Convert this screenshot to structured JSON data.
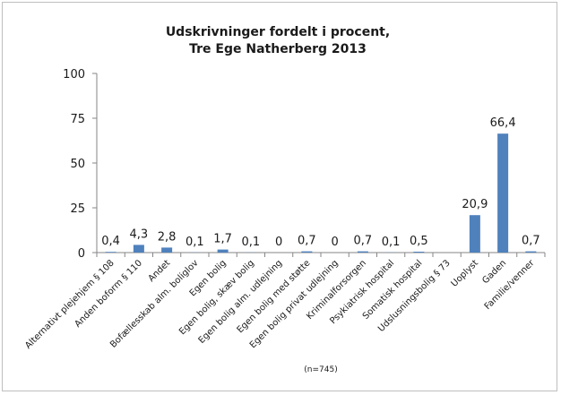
{
  "chart_data": {
    "type": "bar",
    "title_lines": [
      "Udskrivninger fordelt i procent,",
      "Tre Ege Natherberg 2013"
    ],
    "categories": [
      "Alternativt plejehjem § 108",
      "Anden boform § 110",
      "Andet",
      "Bofællesskab alm. boliglov",
      "Egen bolig",
      "Egen bolig, skæv bolig",
      "Egen bolig alm. udlejning",
      "Egen bolig med støtte",
      "Egen bolig privat udlejning",
      "Kriminalforsorgen",
      "Psykiatrisk hospital",
      "Somatisk hospital",
      "Udslusningsbolig § 73",
      "Uoplyst",
      "Gaden",
      "Familie/venner"
    ],
    "values": [
      0.4,
      4.3,
      2.8,
      0.1,
      1.7,
      0.1,
      0,
      0.7,
      0,
      0.7,
      0.1,
      0.5,
      null,
      20.9,
      66.4,
      0.7
    ],
    "data_labels": [
      "0,4",
      "4,3",
      "2,8",
      "0,1",
      "1,7",
      "0,1",
      "0",
      "0,7",
      "0",
      "0,7",
      "0,1",
      "0,5",
      "",
      "20,9",
      "66,4",
      "0,7"
    ],
    "yticks": [
      "0",
      "25",
      "50",
      "75",
      "100"
    ],
    "ylim": [
      0,
      100
    ],
    "grid": false,
    "legend": "none",
    "bar_color": "#4f81bd",
    "note": "(n=745)"
  }
}
